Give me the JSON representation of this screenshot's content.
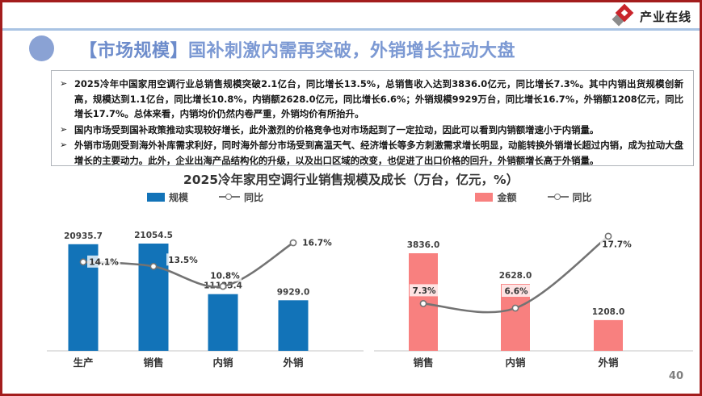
{
  "brand": {
    "logo_text": "产业在线"
  },
  "header": {
    "title_prefix": "【市场规模】",
    "title_rest": "国补刺激内需再突破，外销增长拉动大盘"
  },
  "summary": {
    "bullet_char": "➢",
    "bullets": [
      "2025冷年中国家用空调行业总销售规模突破2.1亿台，同比增长13.5%，总销售收入达到3836.0亿元，同比增长7.3%。其中内销出货规模创新高，规模达到1.1亿台，同比增长10.8%，内销额2628.0亿元，同比增长6.6%；外销规模9929万台，同比增长16.7%，外销额1208亿元，同比增长17.7%。总体来看，内销均价仍然内卷严重，外销均价有所抬升。",
      "国内市场受到国补政策推动实现较好增长，此外激烈的价格竞争也对市场起到了一定拉动，因此可以看到内销额增速小于内销量。",
      "外销市场则受到海外补库需求利好，同时海外部分市场受到高温天气、经济增长等多方刺激需求增长明显，动能转换外销增长超过内销，成为拉动大盘增长的主要动力。此外，企业出海产品结构化的升级，以及出口区域的改变，也促进了出口价格的回升，外销额增长高于外销量。"
    ]
  },
  "chart_title": "2025冷年家用空调行业销售规模及成长（万台，亿元，%）",
  "chart_data": [
    {
      "type": "bar",
      "categories": [
        "生产",
        "销售",
        "内销",
        "外销"
      ],
      "series": [
        {
          "name": "规模",
          "type": "bar",
          "color": "#1273B8",
          "values": [
            20935.7,
            21054.5,
            11125.4,
            9929.0
          ]
        },
        {
          "name": "同比",
          "type": "line",
          "color": "#737373",
          "unit": "%",
          "values": [
            14.1,
            13.5,
            10.8,
            16.7
          ]
        }
      ],
      "legend_position": "top",
      "grid": false,
      "ylabel": "万台"
    },
    {
      "type": "bar",
      "categories": [
        "销售",
        "内销",
        "外销"
      ],
      "series": [
        {
          "name": "金额",
          "type": "bar",
          "color": "#F8807F",
          "values": [
            3836.0,
            2628.0,
            1208.0
          ]
        },
        {
          "name": "同比",
          "type": "line",
          "color": "#737373",
          "unit": "%",
          "values": [
            7.3,
            6.6,
            17.7
          ]
        }
      ],
      "legend_position": "top",
      "grid": false,
      "ylabel": "亿元"
    }
  ],
  "footer": {
    "page_number": "40"
  },
  "colors": {
    "border_red": "#A31D1D",
    "top_rule_blue": "#A9C3E3",
    "title_blue": "#7C99D3",
    "bar_blue": "#1273B8",
    "bar_pink": "#F8807F",
    "line_gray": "#737373"
  }
}
